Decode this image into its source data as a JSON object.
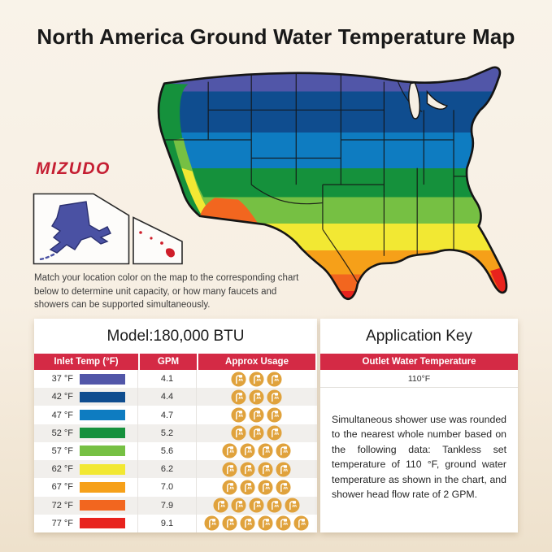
{
  "page": {
    "title": "North America Ground Water Temperature Map",
    "brand": "MIZUDO",
    "description": "Match your location color on the map to the corresponding chart below to determine unit capacity, or how many faucets and showers can be supported simultaneously."
  },
  "map": {
    "bands": [
      "#5156a8",
      "#0f4d8f",
      "#0e7cc1",
      "#15913c",
      "#76c043",
      "#f2e833",
      "#f6a019",
      "#f2661f",
      "#e8231d"
    ],
    "alaska_color": "#4a51a3",
    "hawaii_color": "#cf1e2a",
    "background": "#f6efe3"
  },
  "colors": {
    "accent_red": "#d42a45",
    "brand_red": "#c51f33",
    "icon_orange": "#e0a23c"
  },
  "table": {
    "model_header": "Model:180,000 BTU",
    "application_header": "Application Key",
    "columns": [
      "Inlet Temp (°F)",
      "GPM",
      "Approx Usage"
    ],
    "outlet_column": "Outlet Water Temperature",
    "outlet_value": "110°F",
    "note": "Simultaneous shower use was rounded to the nearest whole number based on the following data: Tankless set temperature of 110 °F, ground water temperature as shown in the chart, and shower head flow rate of 2 GPM.",
    "rows": [
      {
        "temp": "37 °F",
        "color": "#5156a8",
        "gpm": "4.1",
        "showers": 3
      },
      {
        "temp": "42 °F",
        "color": "#0f4d8f",
        "gpm": "4.4",
        "showers": 3
      },
      {
        "temp": "47 °F",
        "color": "#0e7cc1",
        "gpm": "4.7",
        "showers": 3
      },
      {
        "temp": "52 °F",
        "color": "#15913c",
        "gpm": "5.2",
        "showers": 3
      },
      {
        "temp": "57 °F",
        "color": "#76c043",
        "gpm": "5.6",
        "showers": 4
      },
      {
        "temp": "62 °F",
        "color": "#f2e832",
        "gpm": "6.2",
        "showers": 4
      },
      {
        "temp": "67 °F",
        "color": "#f6a019",
        "gpm": "7.0",
        "showers": 4
      },
      {
        "temp": "72 °F",
        "color": "#f2661f",
        "gpm": "7.9",
        "showers": 5
      },
      {
        "temp": "77 °F",
        "color": "#e8231d",
        "gpm": "9.1",
        "showers": 6
      }
    ]
  }
}
